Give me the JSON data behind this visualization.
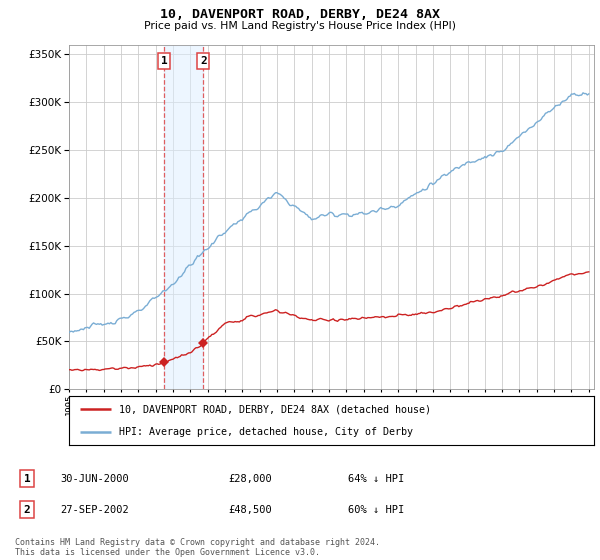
{
  "title": "10, DAVENPORT ROAD, DERBY, DE24 8AX",
  "subtitle": "Price paid vs. HM Land Registry's House Price Index (HPI)",
  "hpi_color": "#7aadd4",
  "property_color": "#cc2222",
  "vline_color": "#dd4444",
  "shade_color": "#ddeeff",
  "shade_alpha": 0.5,
  "legend_property": "10, DAVENPORT ROAD, DERBY, DE24 8AX (detached house)",
  "legend_hpi": "HPI: Average price, detached house, City of Derby",
  "transaction1_date": "30-JUN-2000",
  "transaction1_price": "£28,000",
  "transaction1_hpi": "64% ↓ HPI",
  "transaction1_year": 2000.5,
  "transaction1_value": 28000,
  "transaction2_date": "27-SEP-2002",
  "transaction2_price": "£48,500",
  "transaction2_hpi": "60% ↓ HPI",
  "transaction2_year": 2002.75,
  "transaction2_value": 48500,
  "footer": "Contains HM Land Registry data © Crown copyright and database right 2024.\nThis data is licensed under the Open Government Licence v3.0.",
  "ylim_max": 360000,
  "background_color": "#ffffff",
  "grid_color": "#cccccc",
  "hpi_anchors_x": [
    1995,
    1997,
    1999,
    2001,
    2002,
    2004,
    2007,
    2009,
    2010,
    2012,
    2014,
    2016,
    2018,
    2020,
    2022,
    2024,
    2025
  ],
  "hpi_anchors_y": [
    60000,
    68000,
    80000,
    110000,
    130000,
    165000,
    205000,
    178000,
    183000,
    183000,
    193000,
    215000,
    238000,
    248000,
    280000,
    308000,
    310000
  ],
  "prop_anchors_x": [
    1995,
    1997,
    1999,
    2000.5,
    2002,
    2002.75,
    2004,
    2006,
    2007,
    2009,
    2011,
    2013,
    2016,
    2018,
    2020,
    2022,
    2024,
    2025
  ],
  "prop_anchors_y": [
    20000,
    21000,
    23000,
    28000,
    38000,
    48500,
    68000,
    78000,
    82000,
    72000,
    73000,
    75000,
    80000,
    90000,
    98000,
    107000,
    120000,
    122000
  ]
}
